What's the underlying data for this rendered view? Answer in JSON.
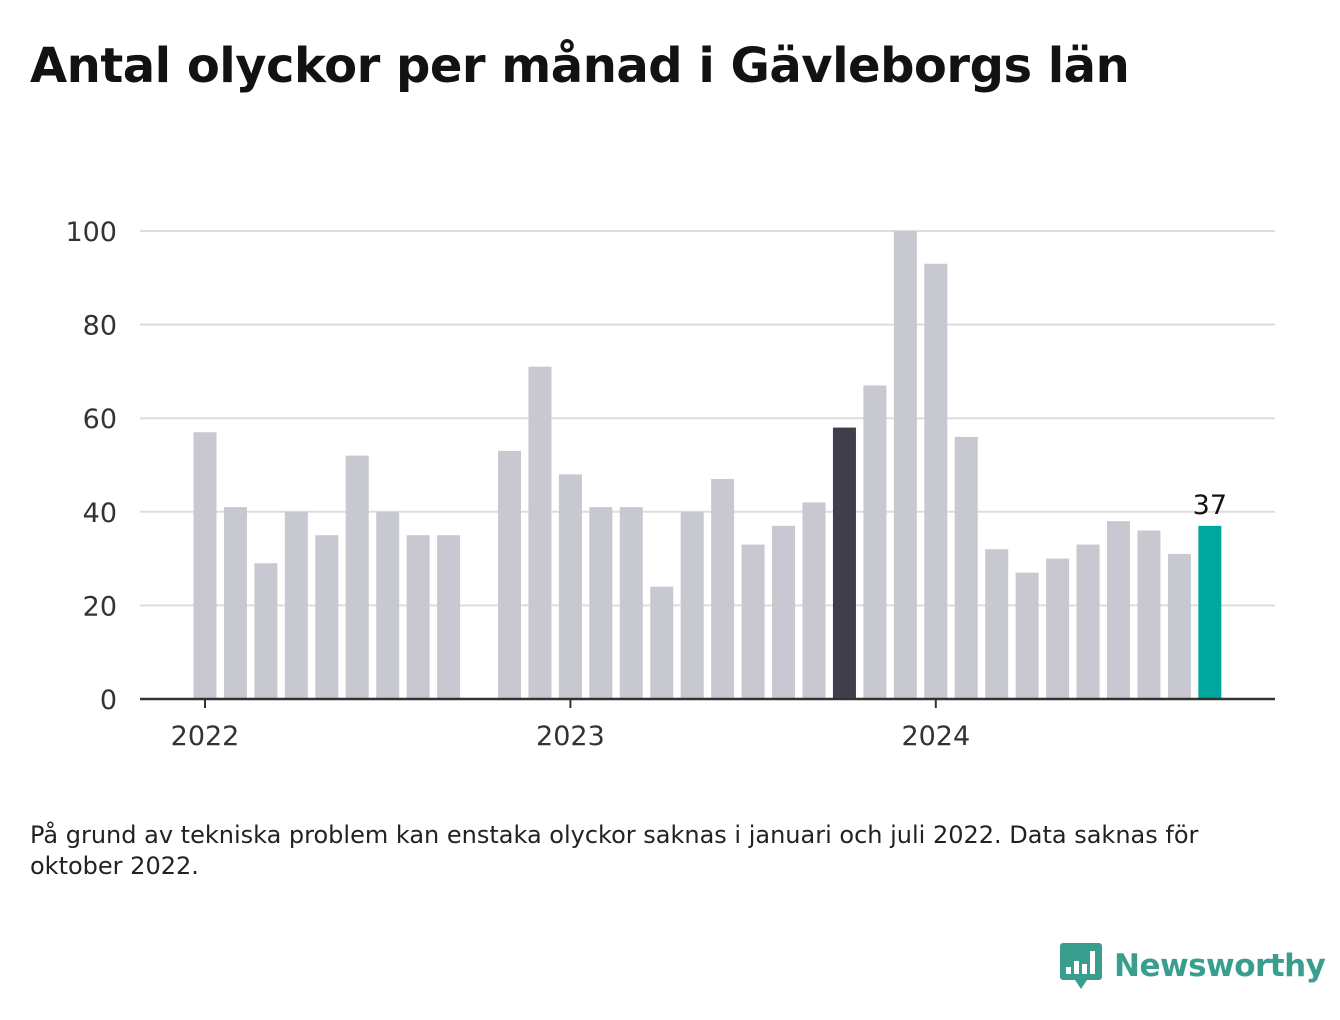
{
  "title": "Antal olyckor per månad i Gävleborgs län",
  "note": "På grund av tekniska problem kan enstaka olyckor saknas i januari och juli 2022. Data saknas för oktober 2022.",
  "brand": {
    "name": "Newsworthy",
    "icon": "newsworthy-logo-icon",
    "color": "#3a9e8f"
  },
  "colors": {
    "default_bar": "#c8c8d0",
    "highlight_dark": "#3f3f4b",
    "highlight_latest": "#00a79d",
    "grid": "#dddddd",
    "axis": "#333333",
    "text": "#333333"
  },
  "chart_data": {
    "type": "bar",
    "title": "Antal olyckor per månad i Gävleborgs län",
    "xlabel": "",
    "ylabel": "",
    "ylim": [
      0,
      100
    ],
    "yticks": [
      0,
      20,
      40,
      60,
      80,
      100
    ],
    "xticks": [
      "2022",
      "2023",
      "2024"
    ],
    "grid": true,
    "categories": [
      "2022-01",
      "2022-02",
      "2022-03",
      "2022-04",
      "2022-05",
      "2022-06",
      "2022-07",
      "2022-08",
      "2022-09",
      "2022-10",
      "2022-11",
      "2022-12",
      "2023-01",
      "2023-02",
      "2023-03",
      "2023-04",
      "2023-05",
      "2023-06",
      "2023-07",
      "2023-08",
      "2023-09",
      "2023-10",
      "2023-11",
      "2023-12",
      "2024-01",
      "2024-02",
      "2024-03",
      "2024-04",
      "2024-05",
      "2024-06",
      "2024-07",
      "2024-08",
      "2024-09",
      "2024-10"
    ],
    "values": [
      57,
      41,
      29,
      40,
      35,
      52,
      40,
      35,
      35,
      null,
      53,
      71,
      48,
      41,
      41,
      24,
      40,
      47,
      33,
      37,
      42,
      58,
      67,
      100,
      93,
      56,
      32,
      27,
      30,
      33,
      38,
      36,
      31,
      37
    ],
    "highlight_dark": "2023-10",
    "highlight_latest": "2024-10",
    "data_labels": [
      {
        "category": "2024-10",
        "text": "37"
      }
    ]
  }
}
